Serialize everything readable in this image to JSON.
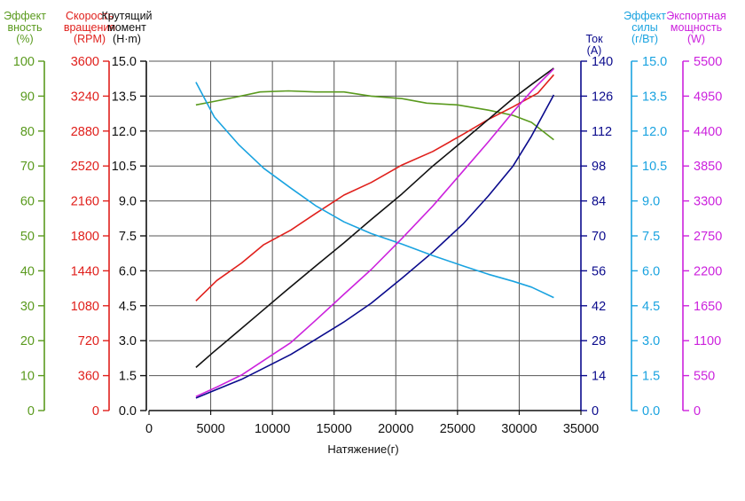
{
  "chart_data": {
    "type": "line",
    "xlabel": "Натяжение(г)",
    "x_ticks": [
      0,
      5000,
      10000,
      15000,
      20000,
      25000,
      30000,
      35000
    ],
    "xlim": [
      0,
      35000
    ],
    "grid": "vertical and horizontal, dark gray",
    "axes": [
      {
        "id": "eff",
        "side": "left",
        "title": [
          "Эффект",
          "вность",
          "(%)"
        ],
        "color": "#5a9a1e",
        "ticks": [
          "0",
          "10",
          "20",
          "30",
          "40",
          "50",
          "60",
          "70",
          "80",
          "90",
          "100"
        ],
        "range": [
          0,
          100
        ]
      },
      {
        "id": "rpm",
        "side": "left",
        "title": [
          "Скорость",
          "вращения",
          "(RPM)"
        ],
        "color": "#e0201c",
        "ticks": [
          "0",
          "360",
          "720",
          "1080",
          "1440",
          "1800",
          "2160",
          "2520",
          "2880",
          "3240",
          "3600"
        ],
        "range": [
          0,
          3600
        ]
      },
      {
        "id": "torque",
        "side": "left",
        "title": [
          "Крутящий",
          "момент",
          "(Н·m)"
        ],
        "color": "#111111",
        "ticks": [
          "0.0",
          "1.5",
          "3.0",
          "4.5",
          "6.0",
          "7.5",
          "9.0",
          "10.5",
          "12.0",
          "13.5",
          "15.0"
        ],
        "range": [
          0,
          15
        ]
      },
      {
        "id": "cur",
        "side": "right",
        "title": [
          "Ток",
          "(A)"
        ],
        "color": "#0a0a8c",
        "ticks": [
          "0",
          "14",
          "28",
          "42",
          "56",
          "70",
          "84",
          "98",
          "112",
          "126",
          "140"
        ],
        "range": [
          0,
          140
        ]
      },
      {
        "id": "thr",
        "side": "right",
        "title": [
          "Эффект",
          "силы",
          "(г/Вт)"
        ],
        "color": "#1aa3e0",
        "ticks": [
          "0.0",
          "1.5",
          "3.0",
          "4.5",
          "6.0",
          "7.5",
          "9.0",
          "10.5",
          "12.0",
          "13.5",
          "15.0"
        ],
        "range": [
          0,
          15
        ]
      },
      {
        "id": "pow",
        "side": "right",
        "title": [
          "Экспортная",
          "мощность",
          "(W)"
        ],
        "color": "#cc22dd",
        "ticks": [
          "0",
          "550",
          "1100",
          "1650",
          "2200",
          "2750",
          "3300",
          "3850",
          "4400",
          "4950",
          "5500"
        ],
        "range": [
          0,
          5500
        ]
      }
    ],
    "series": [
      {
        "axis": "eff",
        "color": "#5a9a1e",
        "x": [
          3800,
          5000,
          7000,
          9000,
          11300,
          13500,
          15800,
          18000,
          20500,
          22500,
          25000,
          27500,
          29500,
          31000,
          32800
        ],
        "y": [
          87.5,
          88.3,
          89.7,
          91.2,
          91.5,
          91.2,
          91.2,
          90,
          89.3,
          88,
          87.5,
          86,
          84.5,
          82.5,
          77.5
        ]
      },
      {
        "axis": "rpm",
        "color": "#e0201c",
        "x": [
          3800,
          5500,
          7500,
          9300,
          11500,
          13500,
          15800,
          18000,
          20500,
          23000,
          25500,
          27500,
          29500,
          31500,
          32800
        ],
        "y": [
          1130,
          1340,
          1520,
          1710,
          1860,
          2030,
          2220,
          2350,
          2530,
          2670,
          2850,
          3000,
          3130,
          3270,
          3460
        ]
      },
      {
        "axis": "torque",
        "color": "#111111",
        "x": [
          3800,
          5200,
          7000,
          9000,
          11000,
          13500,
          15800,
          18000,
          20500,
          23000,
          25500,
          27500,
          29500,
          31000,
          32800
        ],
        "y": [
          1.85,
          2.5,
          3.3,
          4.2,
          5.1,
          6.2,
          7.2,
          8.2,
          9.3,
          10.5,
          11.6,
          12.5,
          13.4,
          14.0,
          14.7
        ]
      },
      {
        "axis": "cur",
        "color": "#0a0a8c",
        "x": [
          3800,
          5500,
          7500,
          9300,
          11500,
          13500,
          15800,
          18000,
          20500,
          23000,
          25500,
          27500,
          29500,
          31000,
          32800
        ],
        "y": [
          5,
          8.5,
          12.5,
          17,
          22.5,
          28.5,
          35.5,
          43,
          53,
          63.5,
          75,
          86,
          98,
          110,
          126.5
        ]
      },
      {
        "axis": "thr",
        "color": "#1aa3e0",
        "x": [
          3800,
          5300,
          7300,
          9300,
          11500,
          13500,
          15800,
          18000,
          20500,
          23000,
          25500,
          27500,
          29500,
          31000,
          32800
        ],
        "y": [
          14.1,
          12.6,
          11.4,
          10.4,
          9.55,
          8.8,
          8.1,
          7.6,
          7.15,
          6.65,
          6.2,
          5.85,
          5.55,
          5.3,
          4.85
        ]
      },
      {
        "axis": "pow",
        "color": "#cc22dd",
        "x": [
          3800,
          5500,
          7500,
          9300,
          11500,
          13500,
          15800,
          18000,
          20500,
          23000,
          25500,
          27500,
          29500,
          31000,
          32800
        ],
        "y": [
          220,
          370,
          560,
          790,
          1070,
          1420,
          1830,
          2220,
          2710,
          3220,
          3780,
          4230,
          4700,
          5030,
          5380
        ]
      }
    ]
  }
}
